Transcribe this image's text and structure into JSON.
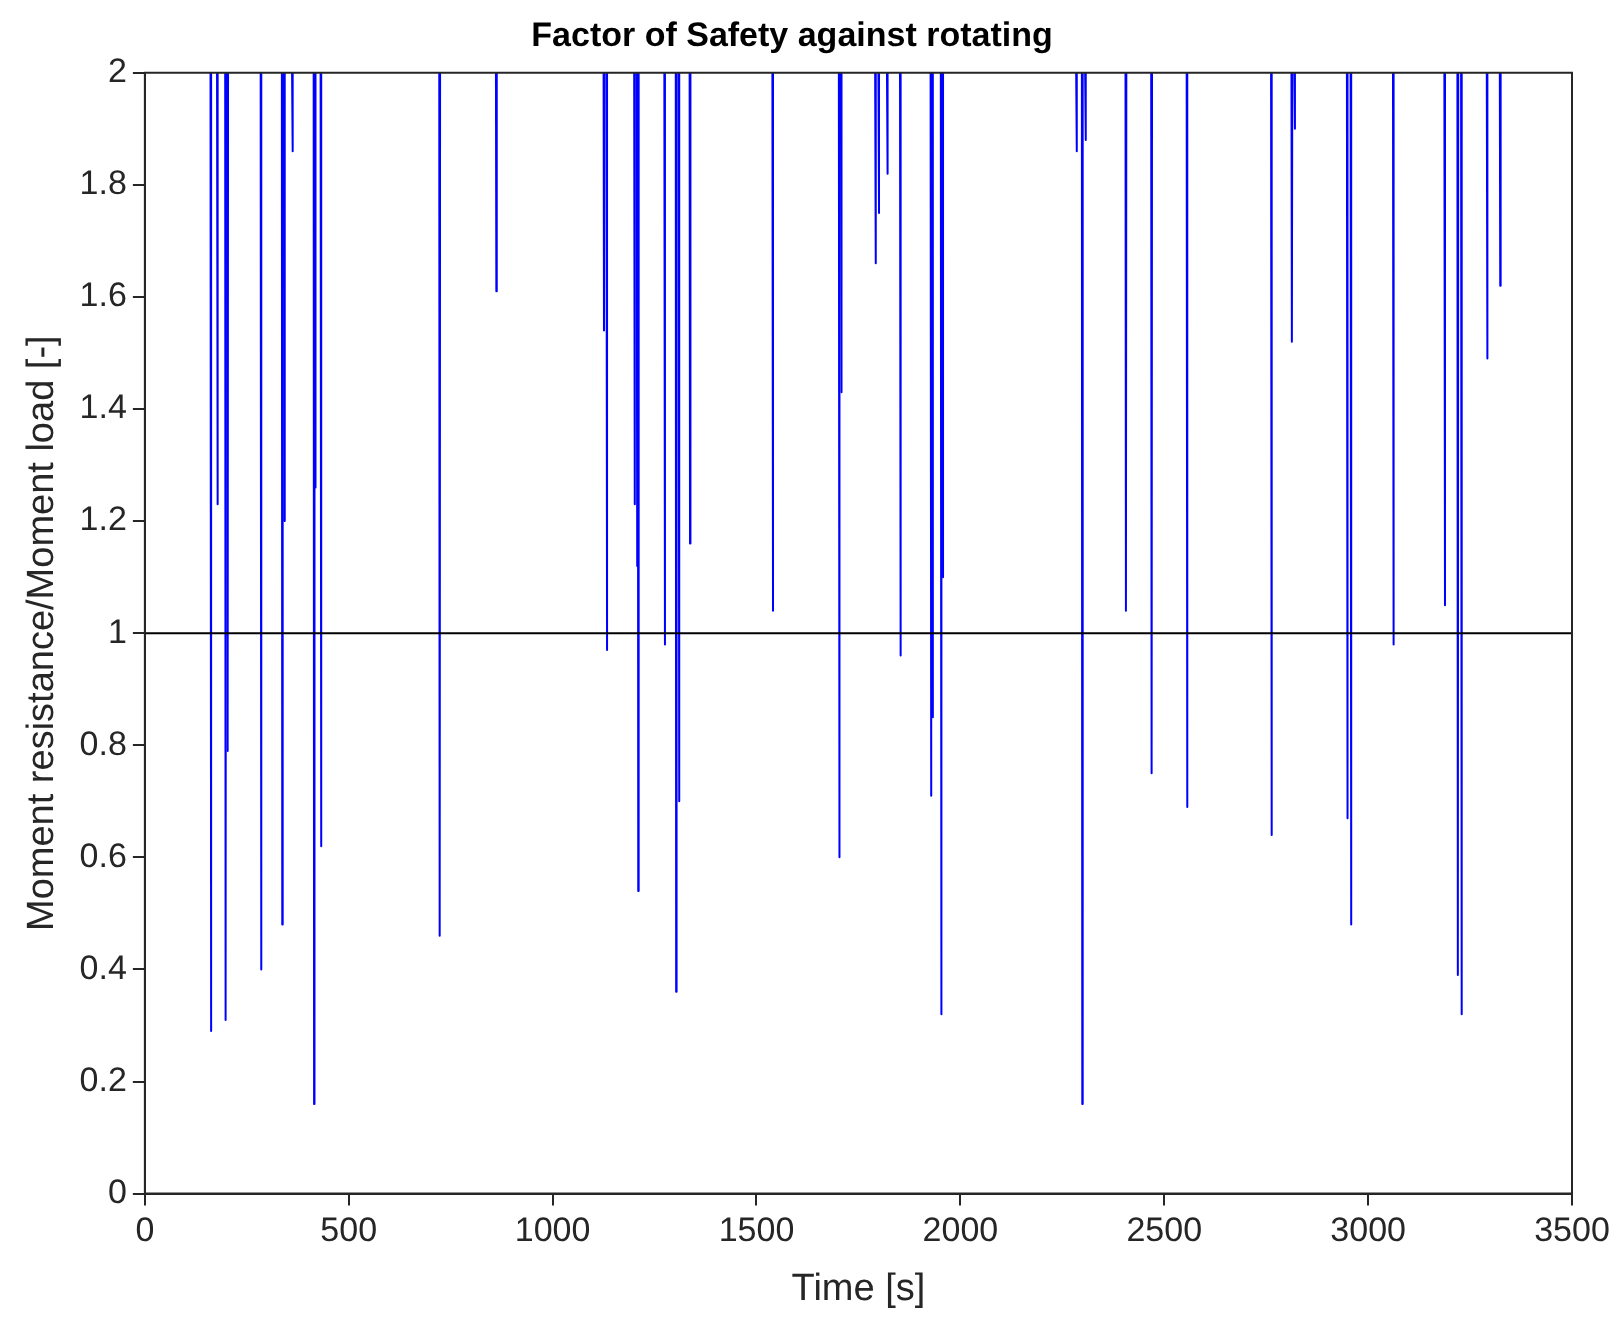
{
  "chart_data": {
    "type": "line",
    "title": "Factor of Safety against rotating",
    "xlabel": "Time [s]",
    "ylabel": "Moment resistance/Moment load [-]",
    "xlim": [
      0,
      3500
    ],
    "xticks": [
      0,
      500,
      1000,
      1500,
      2000,
      2500,
      3000,
      3500
    ],
    "ylim": [
      0,
      2
    ],
    "yticks": [
      0,
      0.2,
      0.4,
      0.6,
      0.8,
      1,
      1.2,
      1.4,
      1.6,
      1.8,
      2
    ],
    "grid": false,
    "legend": false,
    "marker": "none",
    "line_style": "solid",
    "ref_lines": [
      {
        "axis": "y",
        "value": 1,
        "color": "#000000"
      }
    ],
    "series": [
      {
        "color": "#0000ff",
        "x": [
          161,
          162,
          163
        ],
        "values": [
          2,
          0.29,
          2
        ]
      },
      {
        "color": "#0000ff",
        "x": [
          177,
          178,
          179
        ],
        "values": [
          2,
          1.23,
          2
        ]
      },
      {
        "color": "#0000ff",
        "x": [
          197,
          198,
          199
        ],
        "values": [
          2,
          0.31,
          2
        ]
      },
      {
        "color": "#0000ff",
        "x": [
          202,
          203,
          204
        ],
        "values": [
          2,
          0.79,
          2
        ]
      },
      {
        "color": "#0000ff",
        "x": [
          284,
          285,
          286
        ],
        "values": [
          2,
          0.4,
          2
        ]
      },
      {
        "color": "#0000ff",
        "x": [
          336,
          337,
          338
        ],
        "values": [
          2,
          0.48,
          2
        ]
      },
      {
        "color": "#0000ff",
        "x": [
          341,
          342,
          343
        ],
        "values": [
          2,
          1.2,
          2
        ]
      },
      {
        "color": "#0000ff",
        "x": [
          361,
          362,
          363
        ],
        "values": [
          2,
          1.86,
          2
        ]
      },
      {
        "color": "#0000ff",
        "x": [
          414,
          415,
          416
        ],
        "values": [
          2,
          0.16,
          2
        ]
      },
      {
        "color": "#0000ff",
        "x": [
          417,
          418,
          419
        ],
        "values": [
          2,
          1.26,
          2
        ]
      },
      {
        "color": "#0000ff",
        "x": [
          431,
          432,
          433
        ],
        "values": [
          2,
          0.62,
          2
        ]
      },
      {
        "color": "#0000ff",
        "x": [
          722,
          723,
          724
        ],
        "values": [
          2,
          0.46,
          2
        ]
      },
      {
        "color": "#0000ff",
        "x": [
          861,
          862,
          863
        ],
        "values": [
          2,
          1.61,
          2
        ]
      },
      {
        "color": "#0000ff",
        "x": [
          1125,
          1126,
          1127
        ],
        "values": [
          2,
          1.54,
          2
        ]
      },
      {
        "color": "#0000ff",
        "x": [
          1132,
          1133,
          1134
        ],
        "values": [
          2,
          0.97,
          2
        ]
      },
      {
        "color": "#0000ff",
        "x": [
          1200,
          1201,
          1202
        ],
        "values": [
          2,
          1.23,
          2
        ]
      },
      {
        "color": "#0000ff",
        "x": [
          1206,
          1207,
          1208
        ],
        "values": [
          2,
          1.12,
          2
        ]
      },
      {
        "color": "#0000ff",
        "x": [
          1209,
          1210,
          1211
        ],
        "values": [
          2,
          0.54,
          2
        ]
      },
      {
        "color": "#0000ff",
        "x": [
          1274,
          1275,
          1276
        ],
        "values": [
          2,
          0.98,
          2
        ]
      },
      {
        "color": "#0000ff",
        "x": [
          1302,
          1303,
          1304
        ],
        "values": [
          2,
          0.36,
          2
        ]
      },
      {
        "color": "#0000ff",
        "x": [
          1309,
          1310,
          1311
        ],
        "values": [
          2,
          0.7,
          2
        ]
      },
      {
        "color": "#0000ff",
        "x": [
          1336,
          1337,
          1338
        ],
        "values": [
          2,
          1.16,
          2
        ]
      },
      {
        "color": "#0000ff",
        "x": [
          1539,
          1540,
          1541
        ],
        "values": [
          2,
          1.04,
          2
        ]
      },
      {
        "color": "#0000ff",
        "x": [
          1702,
          1703,
          1704
        ],
        "values": [
          2,
          0.6,
          2
        ]
      },
      {
        "color": "#0000ff",
        "x": [
          1707,
          1708,
          1709
        ],
        "values": [
          2,
          1.43,
          2
        ]
      },
      {
        "color": "#0000ff",
        "x": [
          1791,
          1792,
          1793
        ],
        "values": [
          2,
          1.66,
          2
        ]
      },
      {
        "color": "#0000ff",
        "x": [
          1799,
          1800,
          1801
        ],
        "values": [
          2,
          1.75,
          2
        ]
      },
      {
        "color": "#0000ff",
        "x": [
          1820,
          1821,
          1822
        ],
        "values": [
          2,
          1.82,
          2
        ]
      },
      {
        "color": "#0000ff",
        "x": [
          1852,
          1853,
          1854
        ],
        "values": [
          2,
          0.96,
          2
        ]
      },
      {
        "color": "#0000ff",
        "x": [
          1927,
          1928,
          1929
        ],
        "values": [
          2,
          0.71,
          2
        ]
      },
      {
        "color": "#0000ff",
        "x": [
          1931,
          1932,
          1933
        ],
        "values": [
          2,
          0.85,
          2
        ]
      },
      {
        "color": "#0000ff",
        "x": [
          1952,
          1953,
          1954
        ],
        "values": [
          2,
          0.32,
          2
        ]
      },
      {
        "color": "#0000ff",
        "x": [
          1956,
          1957,
          1958
        ],
        "values": [
          2,
          1.1,
          2
        ]
      },
      {
        "color": "#0000ff",
        "x": [
          2284,
          2285,
          2286
        ],
        "values": [
          2,
          1.86,
          2
        ]
      },
      {
        "color": "#0000ff",
        "x": [
          2298,
          2299,
          2300
        ],
        "values": [
          2,
          0.16,
          2
        ]
      },
      {
        "color": "#0000ff",
        "x": [
          2306,
          2307,
          2308
        ],
        "values": [
          2,
          1.88,
          2
        ]
      },
      {
        "color": "#0000ff",
        "x": [
          2405,
          2406,
          2407
        ],
        "values": [
          2,
          1.04,
          2
        ]
      },
      {
        "color": "#0000ff",
        "x": [
          2468,
          2469,
          2470
        ],
        "values": [
          2,
          0.75,
          2
        ]
      },
      {
        "color": "#0000ff",
        "x": [
          2555,
          2556,
          2557
        ],
        "values": [
          2,
          0.69,
          2
        ]
      },
      {
        "color": "#0000ff",
        "x": [
          2762,
          2763,
          2764
        ],
        "values": [
          2,
          0.64,
          2
        ]
      },
      {
        "color": "#0000ff",
        "x": [
          2812,
          2813,
          2814
        ],
        "values": [
          2,
          1.52,
          2
        ]
      },
      {
        "color": "#0000ff",
        "x": [
          2819,
          2820,
          2821
        ],
        "values": [
          2,
          1.9,
          2
        ]
      },
      {
        "color": "#0000ff",
        "x": [
          2948,
          2949,
          2950
        ],
        "values": [
          2,
          0.67,
          2
        ]
      },
      {
        "color": "#0000ff",
        "x": [
          2957,
          2958,
          2959
        ],
        "values": [
          2,
          0.48,
          2
        ]
      },
      {
        "color": "#0000ff",
        "x": [
          3061,
          3062,
          3063
        ],
        "values": [
          2,
          0.98,
          2
        ]
      },
      {
        "color": "#0000ff",
        "x": [
          3187,
          3188,
          3189
        ],
        "values": [
          2,
          1.05,
          2
        ]
      },
      {
        "color": "#0000ff",
        "x": [
          3219,
          3220,
          3221
        ],
        "values": [
          2,
          0.39,
          2
        ]
      },
      {
        "color": "#0000ff",
        "x": [
          3228,
          3229,
          3230
        ],
        "values": [
          2,
          0.32,
          2
        ]
      },
      {
        "color": "#0000ff",
        "x": [
          3291,
          3292,
          3293
        ],
        "values": [
          2,
          1.49,
          2
        ]
      },
      {
        "color": "#0000ff",
        "x": [
          3323,
          3324,
          3325
        ],
        "values": [
          2,
          1.62,
          2
        ]
      }
    ]
  }
}
